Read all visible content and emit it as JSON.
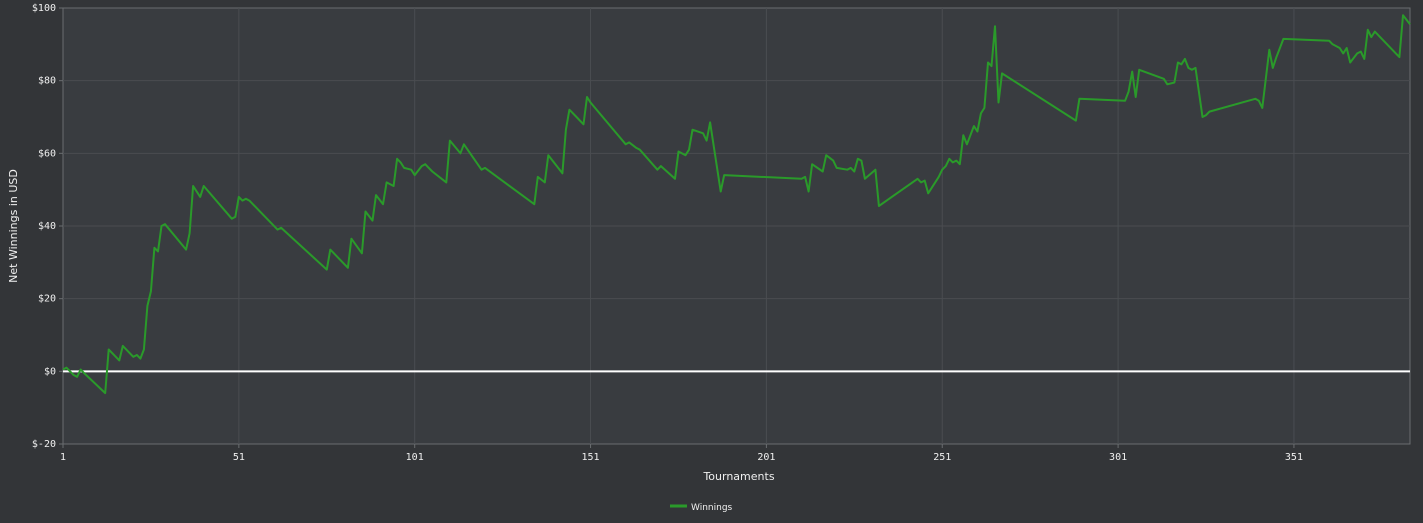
{
  "chart_data": {
    "type": "line",
    "title": "",
    "xlabel": "Tournaments",
    "ylabel": "Net Winnings in USD",
    "xlim": [
      1,
      384
    ],
    "ylim": [
      -20,
      100
    ],
    "x_ticks": [
      1,
      51,
      101,
      151,
      201,
      251,
      301,
      351
    ],
    "x_tick_labels": [
      "1",
      "51",
      "101",
      "151",
      "201",
      "251",
      "301",
      "351"
    ],
    "y_ticks": [
      -20,
      0,
      20,
      40,
      60,
      80,
      100
    ],
    "y_tick_labels": [
      "$-20",
      "$0",
      "$20",
      "$40",
      "$60",
      "$80",
      "$100"
    ],
    "grid": true,
    "zero_line": 0,
    "legend_position": "bottom-center",
    "colors": {
      "background": "#333538",
      "plot_background": "#393c40",
      "grid": "#4a4d51",
      "axis": "#6a6d70",
      "series": "#2a9a2a",
      "zero_line": "#ffffff"
    },
    "series": [
      {
        "name": "Winnings",
        "x": [
          1,
          2,
          3,
          4,
          5,
          6,
          7,
          13,
          14,
          17,
          18,
          21,
          22,
          23,
          24,
          25,
          26,
          27,
          28,
          29,
          30,
          36,
          37,
          38,
          40,
          41,
          49,
          50,
          51,
          52,
          53,
          54,
          62,
          63,
          76,
          77,
          82,
          83,
          86,
          87,
          89,
          90,
          92,
          93,
          95,
          96,
          97,
          98,
          100,
          101,
          103,
          104,
          105,
          106,
          110,
          111,
          114,
          115,
          120,
          121,
          135,
          136,
          138,
          139,
          143,
          144,
          145,
          147,
          149,
          150,
          151,
          161,
          162,
          164,
          165,
          170,
          171,
          175,
          176,
          178,
          179,
          180,
          183,
          184,
          185,
          188,
          189,
          211,
          212,
          213,
          214,
          217,
          218,
          220,
          221,
          224,
          225,
          226,
          227,
          228,
          229,
          232,
          233,
          244,
          245,
          246,
          247,
          250,
          251,
          252,
          253,
          254,
          255,
          256,
          257,
          258,
          260,
          261,
          262,
          263,
          264,
          265,
          266,
          267,
          268,
          289,
          290,
          303,
          304,
          305,
          306,
          307,
          314,
          315,
          317,
          318,
          319,
          320,
          321,
          322,
          323,
          325,
          326,
          327,
          340,
          341,
          342,
          344,
          345,
          346,
          348,
          361,
          362,
          364,
          365,
          366,
          367,
          369,
          370,
          371,
          372,
          373,
          374,
          381,
          382,
          384
        ],
        "values": [
          0.5,
          1,
          0,
          -1,
          -1.5,
          0.5,
          -0.5,
          -6,
          6,
          3,
          7,
          4,
          4.5,
          3.5,
          6,
          18,
          22,
          34,
          33,
          40,
          40.5,
          33.5,
          38,
          51,
          48,
          51,
          42,
          42.5,
          48,
          47,
          47.5,
          47,
          39,
          39.5,
          28,
          33.5,
          28.5,
          36.5,
          32.5,
          44,
          41.5,
          48.5,
          46,
          52,
          51,
          58.5,
          57.5,
          56,
          55.5,
          54,
          56.5,
          57,
          56,
          55,
          52,
          63.5,
          60,
          62.5,
          55.5,
          56,
          46,
          53.5,
          52,
          59.5,
          54.5,
          66.5,
          72,
          70,
          68,
          75.5,
          74,
          62.5,
          63,
          61.5,
          61,
          55.5,
          56.5,
          53,
          60.5,
          59.5,
          61,
          66.5,
          65.5,
          63.5,
          68.5,
          49.5,
          54,
          53,
          53.5,
          49.5,
          57,
          55,
          59.5,
          58,
          56,
          55.5,
          56,
          55,
          58.5,
          58,
          53,
          55.5,
          45.5,
          53,
          52,
          52.5,
          49,
          53.5,
          55.5,
          56.5,
          58.5,
          57.5,
          58,
          57,
          65,
          62.5,
          67.5,
          66,
          71,
          72.5,
          85,
          84,
          95,
          74,
          82,
          69,
          75,
          74.5,
          77,
          82.5,
          75.5,
          83,
          80.5,
          79,
          79.5,
          85,
          84.5,
          86,
          83.5,
          83,
          83.5,
          70,
          70.5,
          71.5,
          75,
          74.5,
          72.5,
          88.5,
          83.5,
          86.5,
          91.5,
          91,
          90,
          89,
          87.5,
          89,
          85,
          87.5,
          88,
          86,
          94,
          92,
          93.5,
          86.5,
          98,
          95.5
        ]
      }
    ]
  }
}
